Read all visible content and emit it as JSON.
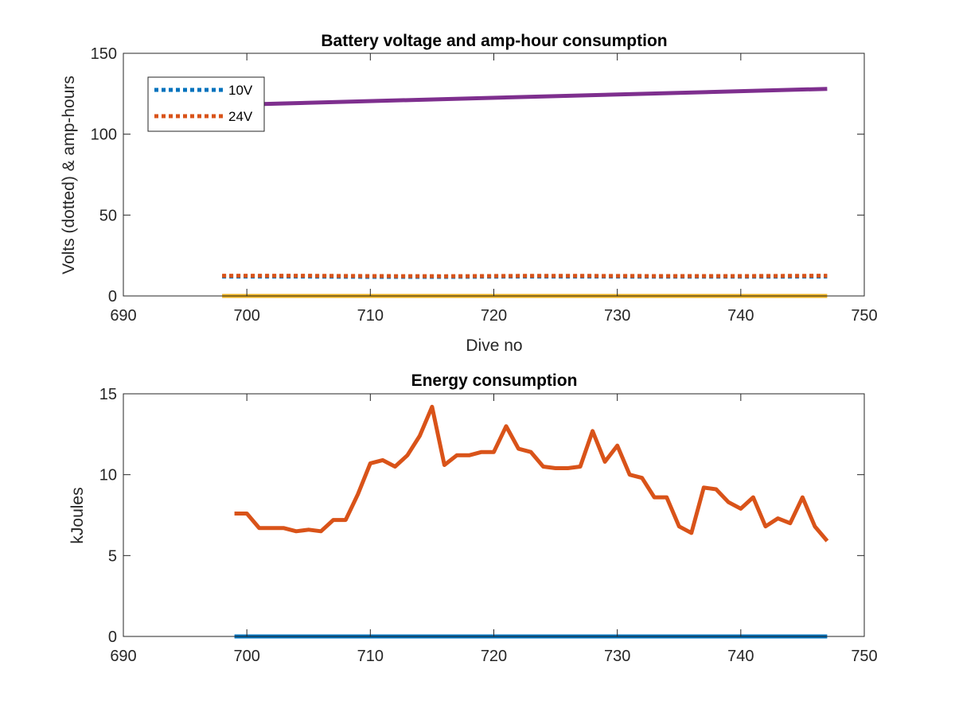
{
  "chart_data": [
    {
      "type": "line",
      "title": "Battery voltage and amp-hour consumption",
      "xlabel": "Dive no",
      "ylabel": "Volts (dotted) & amp-hours",
      "xlim": [
        690,
        750
      ],
      "ylim": [
        0,
        150
      ],
      "xticks": [
        690,
        700,
        710,
        720,
        730,
        740,
        750
      ],
      "yticks": [
        0,
        50,
        100,
        150
      ],
      "legend_position": "top-left",
      "grid": false,
      "series": [
        {
          "name": "10V",
          "style": "dotted",
          "color": "#0072BD",
          "x": [
            698,
            704,
            710,
            716,
            722,
            728,
            734,
            740,
            747
          ],
          "y": [
            12,
            12,
            11.8,
            11.8,
            12,
            12,
            11.9,
            11.9,
            12
          ]
        },
        {
          "name": "24V",
          "style": "dotted",
          "color": "#D95319",
          "x": [
            698,
            704,
            710,
            716,
            722,
            728,
            734,
            740,
            747
          ],
          "y": [
            12.5,
            12.5,
            12.3,
            12.2,
            12.4,
            12.4,
            12.3,
            12.3,
            12.5
          ]
        },
        {
          "style": "solid",
          "color": "#EDB120",
          "x": [
            698,
            747
          ],
          "y": [
            0,
            0
          ]
        },
        {
          "style": "solid",
          "color": "#7E2F8E",
          "x": [
            698,
            747
          ],
          "y": [
            118,
            128
          ]
        }
      ]
    },
    {
      "type": "line",
      "title": "Energy consumption",
      "xlabel": "",
      "ylabel": "kJoules",
      "xlim": [
        690,
        750
      ],
      "ylim": [
        0,
        15
      ],
      "xticks": [
        690,
        700,
        710,
        720,
        730,
        740,
        750
      ],
      "yticks": [
        0,
        5,
        10,
        15
      ],
      "grid": false,
      "series": [
        {
          "style": "solid",
          "color": "#D95319",
          "x": [
            699,
            700,
            701,
            702,
            703,
            704,
            705,
            706,
            707,
            708,
            709,
            710,
            711,
            712,
            713,
            714,
            715,
            716,
            717,
            718,
            719,
            720,
            721,
            722,
            723,
            724,
            725,
            726,
            727,
            728,
            729,
            730,
            731,
            732,
            733,
            734,
            735,
            736,
            737,
            738,
            739,
            740,
            741,
            742,
            743,
            744,
            745,
            746,
            747
          ],
          "y": [
            7.6,
            7.6,
            6.7,
            6.7,
            6.7,
            6.5,
            6.6,
            6.5,
            7.2,
            7.2,
            8.8,
            10.7,
            10.9,
            10.5,
            11.2,
            12.4,
            14.2,
            10.6,
            11.2,
            11.2,
            11.4,
            11.4,
            13.0,
            11.6,
            11.4,
            10.5,
            10.4,
            10.4,
            10.5,
            12.7,
            10.8,
            11.8,
            10.0,
            9.8,
            8.6,
            8.6,
            6.8,
            6.4,
            9.2,
            9.1,
            8.3,
            7.9,
            8.6,
            6.8,
            7.3,
            7.0,
            8.6,
            6.8,
            5.9
          ]
        },
        {
          "style": "solid",
          "color": "#0072BD",
          "x": [
            699,
            747
          ],
          "y": [
            0,
            0
          ]
        }
      ]
    }
  ]
}
